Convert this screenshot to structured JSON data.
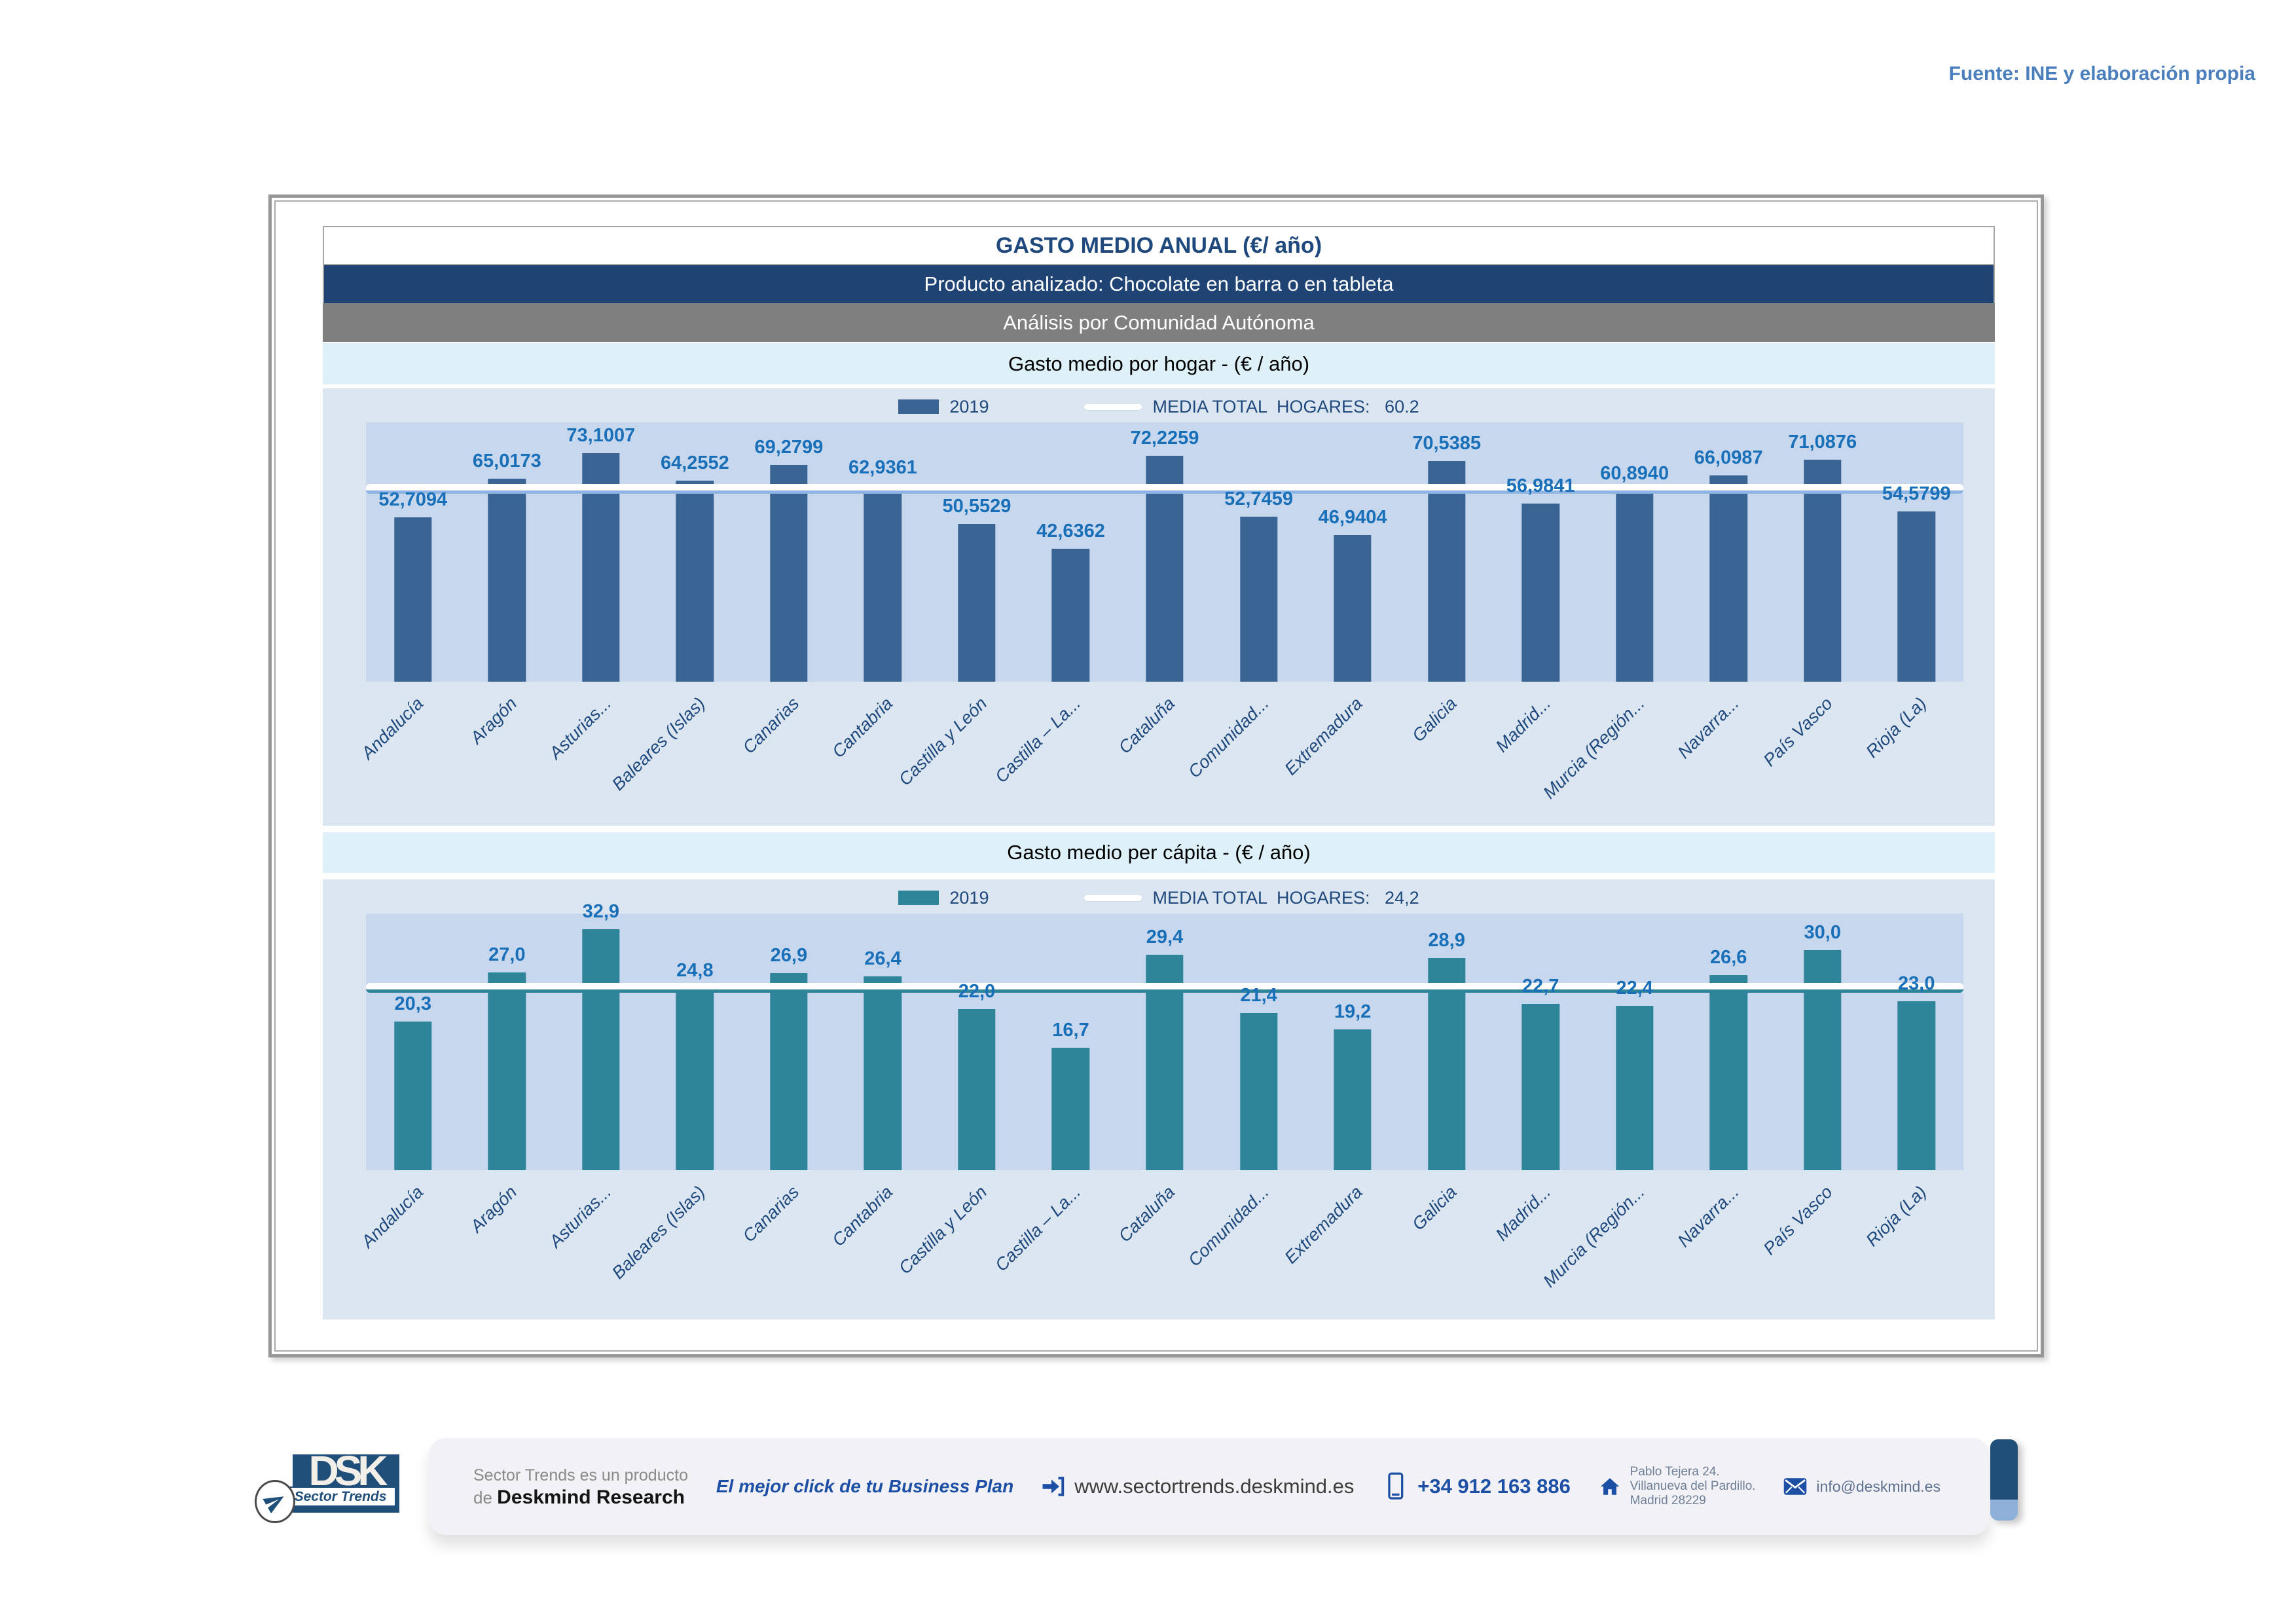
{
  "fuente": "Fuente: INE y elaboración propia",
  "header": {
    "title": "GASTO MEDIO ANUAL (€/ año)",
    "product": "Producto analizado: Chocolate en barra o en tableta",
    "analysis": "Análisis por Comunidad Autónoma"
  },
  "chart_data": [
    {
      "type": "bar",
      "section_title": "Gasto medio por hogar -  (€ / año)",
      "legend": {
        "series_label": "2019",
        "media_label": "MEDIA TOTAL  HOGARES:   60.2"
      },
      "categories": [
        "Andalucía",
        "Aragón",
        "Asturias...",
        "Baleares (Islas)",
        "Canarias",
        "Cantabria",
        "Castilla y León",
        "Castilla – La...",
        "Cataluña",
        "Comunidad...",
        "Extremadura",
        "Galicia",
        "Madrid...",
        "Murcia (Región...",
        "Navarra...",
        "País Vasco",
        "Rioja (La)"
      ],
      "values": [
        52.7094,
        65.0173,
        73.1007,
        64.2552,
        69.2799,
        62.9361,
        50.5529,
        42.6362,
        72.2259,
        52.7459,
        46.9404,
        70.5385,
        56.9841,
        60.894,
        66.0987,
        71.0876,
        54.5799
      ],
      "value_labels": [
        "52,7094",
        "65,0173",
        "73,1007",
        "64,2552",
        "69,2799",
        "62,9361",
        "50,5529",
        "42,6362",
        "72,2259",
        "52,7459",
        "46,9404",
        "70,5385",
        "56,9841",
        "60,8940",
        "66,0987",
        "71,0876",
        "54,5799"
      ],
      "media_value": 60.2,
      "ylim": [
        0,
        83
      ],
      "grid": false,
      "legend_position": "top-center",
      "bar_color": "#3a6493",
      "media_line_color": "#ffffff",
      "media_underline_color": "#8db4e2"
    },
    {
      "type": "bar",
      "section_title": "Gasto medio per cápita -  (€ / año)",
      "legend": {
        "series_label": "2019",
        "media_label": "MEDIA TOTAL  HOGARES:   24,2"
      },
      "categories": [
        "Andalucía",
        "Aragón",
        "Asturias...",
        "Baleares (Islas)",
        "Canarias",
        "Cantabria",
        "Castilla y León",
        "Castilla – La...",
        "Cataluña",
        "Comunidad...",
        "Extremadura",
        "Galicia",
        "Madrid...",
        "Murcia (Región...",
        "Navarra...",
        "País Vasco",
        "Rioja (La)"
      ],
      "values": [
        20.3,
        27.0,
        32.9,
        24.8,
        26.9,
        26.4,
        22.0,
        16.7,
        29.4,
        21.4,
        19.2,
        28.9,
        22.7,
        22.4,
        26.6,
        30.0,
        23.0
      ],
      "value_labels": [
        "20,3",
        "27,0",
        "32,9",
        "24,8",
        "26,9",
        "26,4",
        "22,0",
        "16,7",
        "29,4",
        "21,4",
        "19,2",
        "28,9",
        "22,7",
        "22,4",
        "26,6",
        "30,0",
        "23,0"
      ],
      "media_value": 24.2,
      "ylim": [
        0,
        35
      ],
      "grid": false,
      "legend_position": "top-center",
      "bar_color": "#2e8499",
      "media_line_color": "#ffffff",
      "media_underline_color": "#2e8499"
    }
  ],
  "footer": {
    "logo": {
      "dsk": "DSK",
      "sector_trends": "Sector Trends"
    },
    "product_line1": "Sector Trends es un producto",
    "product_line2_prefix": "de ",
    "product_line2_bold": "Deskmind Research",
    "tagline": "El mejor click de tu Business Plan",
    "website": "www.sectortrends.deskmind.es",
    "phone": "+34 912 163 886",
    "address_lines": [
      "Pablo Tejera 24.",
      "Villanueva del Pardillo.",
      "Madrid 28229"
    ],
    "email": "info@deskmind.es"
  }
}
